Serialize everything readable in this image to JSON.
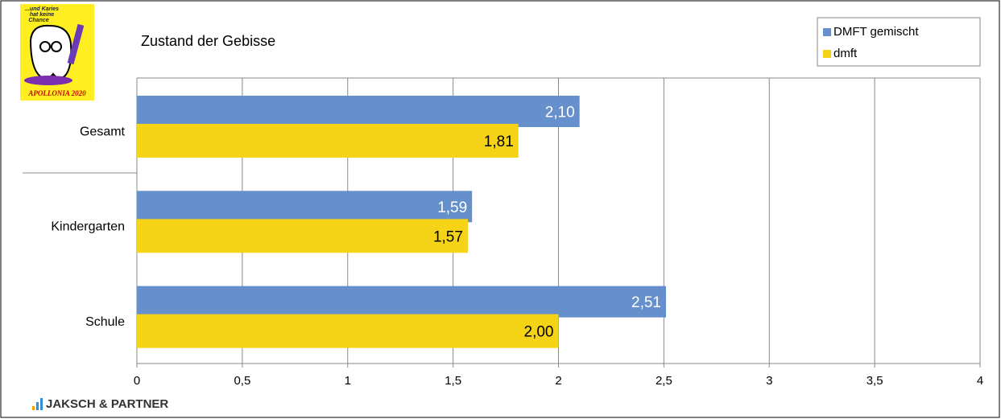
{
  "chart_data": {
    "type": "barh",
    "title": "Zustand der Gebisse",
    "categories": [
      "Gesamt",
      "Kindergarten",
      "Schule"
    ],
    "series": [
      {
        "name": "DMFT gemischt",
        "color": "#6590cc",
        "values": [
          2.1,
          1.59,
          2.51
        ],
        "value_labels": [
          "2,10",
          "1,59",
          "2,51"
        ]
      },
      {
        "name": "dmft",
        "color": "#f5d316",
        "values": [
          1.81,
          1.57,
          2.0
        ],
        "value_labels": [
          "1,81",
          "1,57",
          "2,00"
        ]
      }
    ],
    "xlim": [
      0,
      4
    ],
    "xticks": [
      0,
      {
        "value": 0.5,
        "label": "0,5"
      },
      1,
      {
        "value": 1.5,
        "label": "1,5"
      },
      2,
      {
        "value": 2.5,
        "label": "2,5"
      },
      3,
      {
        "value": 3.5,
        "label": "3,5"
      },
      4
    ],
    "grid": true,
    "legend": "top-right"
  },
  "logo": {
    "slogan": [
      "...und Karies",
      "hat keine",
      "Chance"
    ],
    "name": "APOLLONIA 2020"
  },
  "footer": "JAKSCH & PARTNER"
}
